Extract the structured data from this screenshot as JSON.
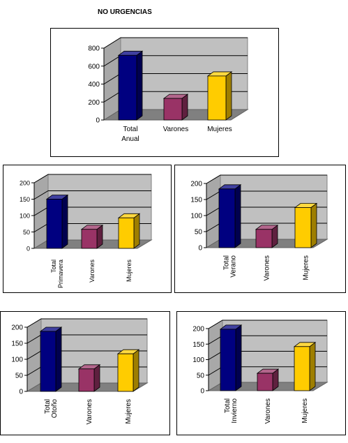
{
  "page": {
    "title": "NO URGENCIAS"
  },
  "chart_data": [
    {
      "type": "bar",
      "title": "",
      "categories": [
        [
          "Total",
          "Anual"
        ],
        [
          "Varones"
        ],
        [
          "Mujeres"
        ]
      ],
      "values": [
        720,
        240,
        490
      ],
      "ylim": [
        0,
        800
      ],
      "yticks": [
        "0",
        "200",
        "400",
        "600",
        "800"
      ],
      "colors": [
        "#000080",
        "#993366",
        "#FFCC00"
      ],
      "grid": true,
      "legend": "none"
    },
    {
      "type": "bar",
      "title": "",
      "categories": [
        [
          "Total",
          "Primavera"
        ],
        [
          "Varones"
        ],
        [
          "Mujeres"
        ]
      ],
      "values": [
        150,
        58,
        93
      ],
      "ylim": [
        0,
        200
      ],
      "yticks": [
        "0",
        "50",
        "100",
        "150",
        "200"
      ],
      "colors": [
        "#000080",
        "#993366",
        "#FFCC00"
      ],
      "grid": true,
      "legend": "none"
    },
    {
      "type": "bar",
      "title": "",
      "categories": [
        [
          "Total",
          "Verano"
        ],
        [
          "Varones"
        ],
        [
          "Mujeres"
        ]
      ],
      "values": [
        183,
        57,
        125
      ],
      "ylim": [
        0,
        200
      ],
      "yticks": [
        "0",
        "50",
        "100",
        "150",
        "200"
      ],
      "colors": [
        "#000080",
        "#993366",
        "#FFCC00"
      ],
      "grid": true,
      "legend": "none"
    },
    {
      "type": "bar",
      "title": "",
      "categories": [
        [
          "Total",
          "Otoño"
        ],
        [
          "Varones"
        ],
        [
          "Mujeres"
        ]
      ],
      "values": [
        187,
        70,
        117
      ],
      "ylim": [
        0,
        200
      ],
      "yticks": [
        "0",
        "50",
        "100",
        "150",
        "200"
      ],
      "colors": [
        "#000080",
        "#993366",
        "#FFCC00"
      ],
      "grid": true,
      "legend": "none"
    },
    {
      "type": "bar",
      "title": "",
      "categories": [
        [
          "Total",
          "Invierno"
        ],
        [
          "Varones"
        ],
        [
          "Mujeres"
        ]
      ],
      "values": [
        198,
        56,
        142
      ],
      "ylim": [
        0,
        200
      ],
      "yticks": [
        "0",
        "50",
        "100",
        "150",
        "200"
      ],
      "colors": [
        "#000080",
        "#993366",
        "#FFCC00"
      ],
      "grid": true,
      "legend": "none"
    }
  ]
}
